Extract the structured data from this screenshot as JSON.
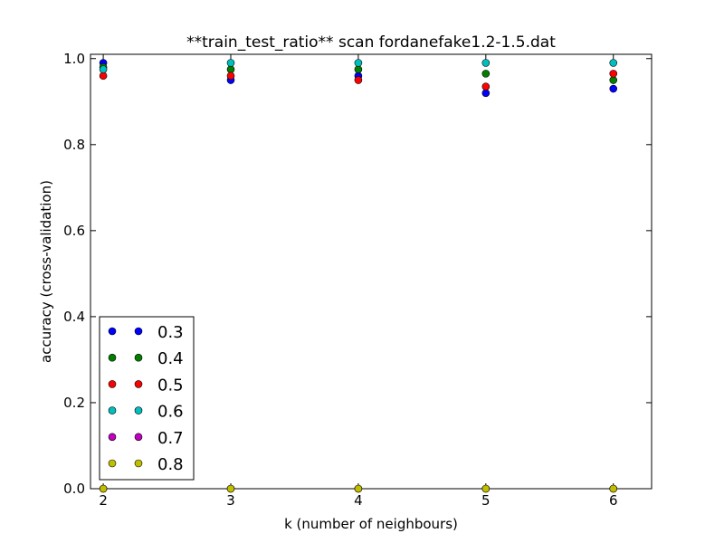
{
  "chart_data": {
    "type": "scatter",
    "title": "**train_test_ratio** scan fordanefake1.2-1.5.dat",
    "xlabel": "k (number of neighbours)",
    "ylabel": "accuracy (cross-validation)",
    "xlim": [
      1.9,
      6.3
    ],
    "ylim": [
      0.0,
      1.01
    ],
    "xticks": [
      2,
      3,
      4,
      5,
      6
    ],
    "xtick_labels": [
      "2",
      "3",
      "4",
      "5",
      "6"
    ],
    "yticks": [
      0.0,
      0.2,
      0.4,
      0.6,
      0.8,
      1.0
    ],
    "ytick_labels": [
      "0.0",
      "0.2",
      "0.4",
      "0.6",
      "0.8",
      "1.0"
    ],
    "grid": false,
    "legend_position": "lower-left",
    "x": [
      2,
      3,
      4,
      5,
      6
    ],
    "series": [
      {
        "name": "0.3",
        "color": "#0000ff",
        "values": [
          0.99,
          0.95,
          0.96,
          0.92,
          0.93
        ]
      },
      {
        "name": "0.4",
        "color": "#007f00",
        "values": [
          0.98,
          0.975,
          0.975,
          0.965,
          0.95
        ]
      },
      {
        "name": "0.5",
        "color": "#ff0000",
        "values": [
          0.96,
          0.96,
          0.95,
          0.935,
          0.965
        ]
      },
      {
        "name": "0.6",
        "color": "#00bfbf",
        "values": [
          0.975,
          0.99,
          0.99,
          0.99,
          0.99
        ]
      },
      {
        "name": "0.7",
        "color": "#bf00bf",
        "values": [
          0.0,
          0.0,
          0.0,
          0.0,
          0.0
        ]
      },
      {
        "name": "0.8",
        "color": "#bfbf00",
        "values": [
          0.0,
          0.0,
          0.0,
          0.0,
          0.0
        ]
      }
    ]
  }
}
